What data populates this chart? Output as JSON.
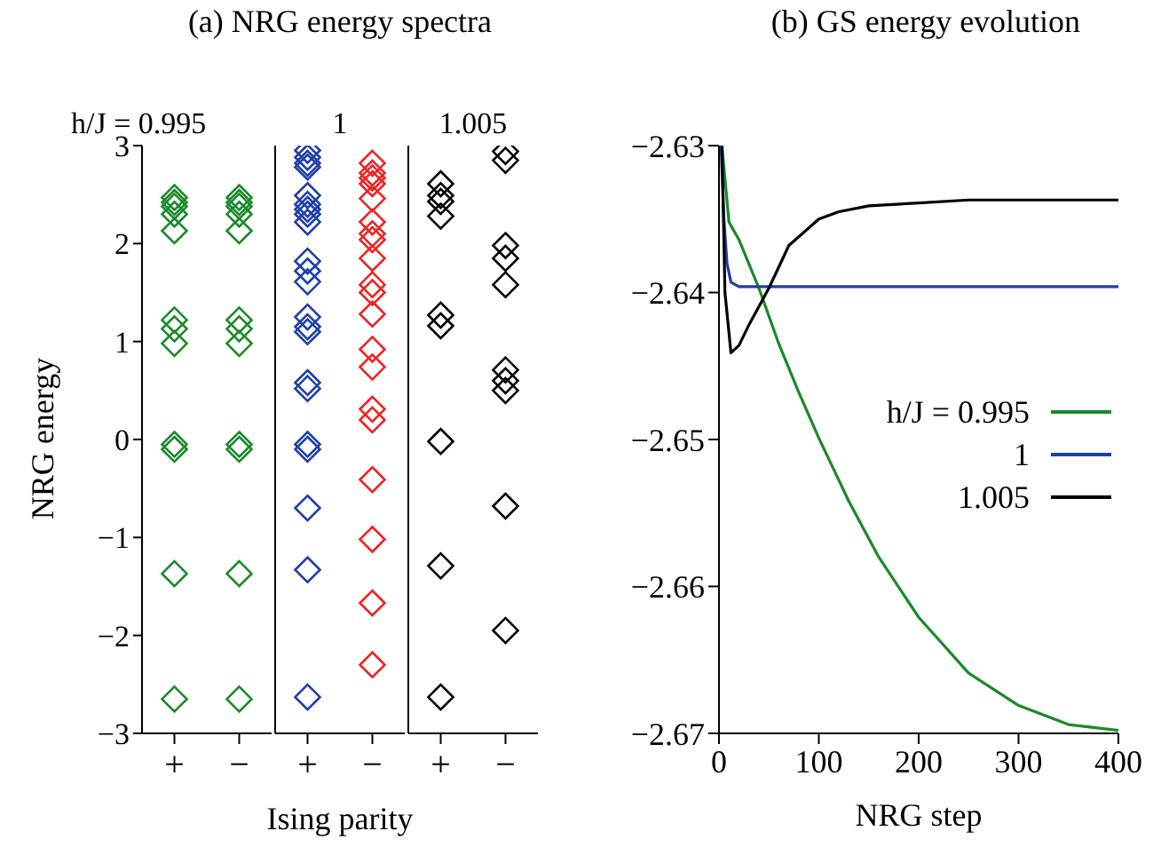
{
  "chart_data": [
    {
      "type": "scatter",
      "title": "(a) NRG energy spectra",
      "subtitle": "h/J = 0.995",
      "ylabel": "NRG energy",
      "categories": [
        "+",
        "−"
      ],
      "ylim": [
        -3,
        3
      ],
      "yticks": [
        {
          "value": -3,
          "label": "−3"
        },
        {
          "value": -2,
          "label": "−2"
        },
        {
          "value": -1,
          "label": "−1"
        },
        0,
        1,
        2,
        3
      ],
      "marker": "diamond",
      "series": [
        {
          "color": "#1a8a2a",
          "x": [
            "+",
            "+",
            "+",
            "+",
            "+",
            "+",
            "+",
            "+",
            "+",
            "+",
            "+",
            "+",
            "−",
            "−",
            "−",
            "−",
            "−",
            "−",
            "−",
            "−",
            "−",
            "−",
            "−",
            "−"
          ],
          "values": [
            2.47,
            2.38,
            2.3,
            2.13,
            1.22,
            1.13,
            0.98,
            -0.05,
            -0.1,
            -1.37,
            -2.65,
            2.42,
            2.47,
            2.38,
            2.3,
            2.13,
            1.22,
            1.13,
            0.98,
            -0.05,
            -0.1,
            -1.37,
            -2.65,
            2.42
          ]
        }
      ]
    },
    {
      "type": "scatter",
      "subtitle": "1",
      "xlabel": "Ising parity",
      "categories": [
        "+",
        "−"
      ],
      "ylim": [
        -3,
        3
      ],
      "yticks": [
        -3,
        -2,
        -1,
        0,
        1,
        2,
        3
      ],
      "tick_labels": "x",
      "marker": "diamond",
      "series": [
        {
          "color": "#1f3fa8",
          "x": [
            "+",
            "+",
            "+",
            "+",
            "+",
            "+",
            "+",
            "+",
            "+",
            "+",
            "+",
            "+",
            "+",
            "+",
            "+",
            "+",
            "+",
            "+",
            "+",
            "+",
            "+",
            "+"
          ],
          "values": [
            2.95,
            2.88,
            2.82,
            2.78,
            2.49,
            2.4,
            2.3,
            2.22,
            1.82,
            1.72,
            1.61,
            1.25,
            1.15,
            1.1,
            0.58,
            0.52,
            -0.05,
            -0.1,
            -0.7,
            -1.33,
            -2.63,
            2.35
          ]
        },
        {
          "color": "#ee2222",
          "x": [
            "−",
            "−",
            "−",
            "−",
            "−",
            "−",
            "−",
            "−",
            "−",
            "−",
            "−",
            "−",
            "−",
            "−",
            "−",
            "−",
            "−",
            "−",
            "−",
            "−"
          ],
          "values": [
            2.82,
            2.72,
            2.61,
            2.46,
            2.22,
            2.1,
            2.04,
            1.85,
            1.58,
            1.5,
            1.28,
            0.92,
            0.74,
            0.31,
            0.2,
            -0.41,
            -1.02,
            -1.67,
            -2.3,
            2.67
          ]
        }
      ]
    },
    {
      "type": "scatter",
      "subtitle": "1.005",
      "categories": [
        "+",
        "−"
      ],
      "ylim": [
        -3,
        3
      ],
      "yticks": [
        -3,
        -2,
        -1,
        0,
        1,
        2,
        3
      ],
      "tick_labels": "x",
      "marker": "diamond",
      "series": [
        {
          "color": "#000000",
          "x": [
            "+",
            "+",
            "+",
            "+",
            "+",
            "+",
            "+",
            "+",
            "+",
            "−",
            "−",
            "−",
            "−",
            "−",
            "−",
            "−",
            "−",
            "−",
            "−"
          ],
          "values": [
            2.61,
            2.49,
            2.43,
            2.28,
            1.27,
            1.16,
            -0.02,
            -1.29,
            -2.63,
            2.94,
            2.85,
            1.98,
            1.85,
            1.58,
            0.71,
            0.5,
            0.6,
            -0.68,
            -1.95
          ]
        }
      ]
    },
    {
      "type": "line",
      "title": "(b) GS energy evolution",
      "xlabel": "NRG step",
      "xlim": [
        0,
        400
      ],
      "xticks": [
        0,
        100,
        200,
        300,
        400
      ],
      "ylim": [
        -2.67,
        -2.63
      ],
      "yticks": [
        {
          "value": -2.67,
          "label": "−2.67"
        },
        {
          "value": -2.66,
          "label": "−2.66"
        },
        {
          "value": -2.65,
          "label": "−2.65"
        },
        {
          "value": -2.64,
          "label": "−2.64"
        },
        {
          "value": -2.63,
          "label": "−2.63"
        }
      ],
      "legend": "right",
      "marker": "none",
      "series": [
        {
          "name": "h/J = 0.995",
          "color": "#1a8a2a",
          "x": [
            3,
            10,
            20,
            40,
            60,
            80,
            100,
            130,
            160,
            200,
            250,
            300,
            350,
            400
          ],
          "values": [
            -2.63,
            -2.6352,
            -2.6364,
            -2.6397,
            -2.6435,
            -2.6468,
            -2.6499,
            -2.6542,
            -2.658,
            -2.6621,
            -2.6659,
            -2.6681,
            -2.6694,
            -2.6698
          ]
        },
        {
          "name": "1",
          "color": "#1f3fa8",
          "x": [
            2,
            5,
            8,
            12,
            20,
            400
          ],
          "values": [
            -2.63,
            -2.635,
            -2.638,
            -2.6393,
            -2.6396,
            -2.6396
          ]
        },
        {
          "name": "1.005",
          "color": "#000000",
          "x": [
            3,
            6,
            12,
            20,
            30,
            50,
            70,
            100,
            120,
            150,
            200,
            250,
            300,
            400
          ],
          "values": [
            -2.63,
            -2.64,
            -2.6441,
            -2.6436,
            -2.6422,
            -2.6397,
            -2.6368,
            -2.635,
            -2.6345,
            -2.6341,
            -2.6339,
            -2.6337,
            -2.6337,
            -2.6337
          ]
        }
      ]
    }
  ]
}
